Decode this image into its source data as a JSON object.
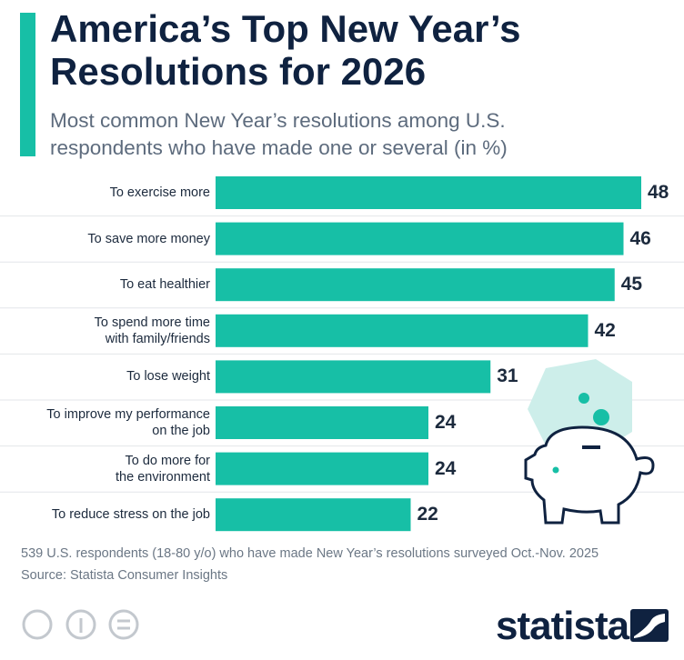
{
  "chart_data": {
    "type": "bar",
    "title": "America’s Top New Year’s Resolutions for 2026",
    "subtitle": "Most common New Year’s resolutions among U.S. respondents who have made one or several (in %)",
    "categories": [
      "To exercise more",
      "To save more money",
      "To eat healthier",
      "To spend more time\nwith family/friends",
      "To lose weight",
      "To improve my performance\non the job",
      "To do more for\nthe environment",
      "To reduce stress on the job"
    ],
    "values": [
      48,
      46,
      45,
      42,
      31,
      24,
      24,
      22
    ],
    "color": "#17bfa6",
    "note": "539 U.S. respondents (18-80 y/o) who have made New Year’s resolutions surveyed Oct.-Nov. 2025",
    "source": "Source: Statista Consumer Insights",
    "logo": "statista"
  }
}
